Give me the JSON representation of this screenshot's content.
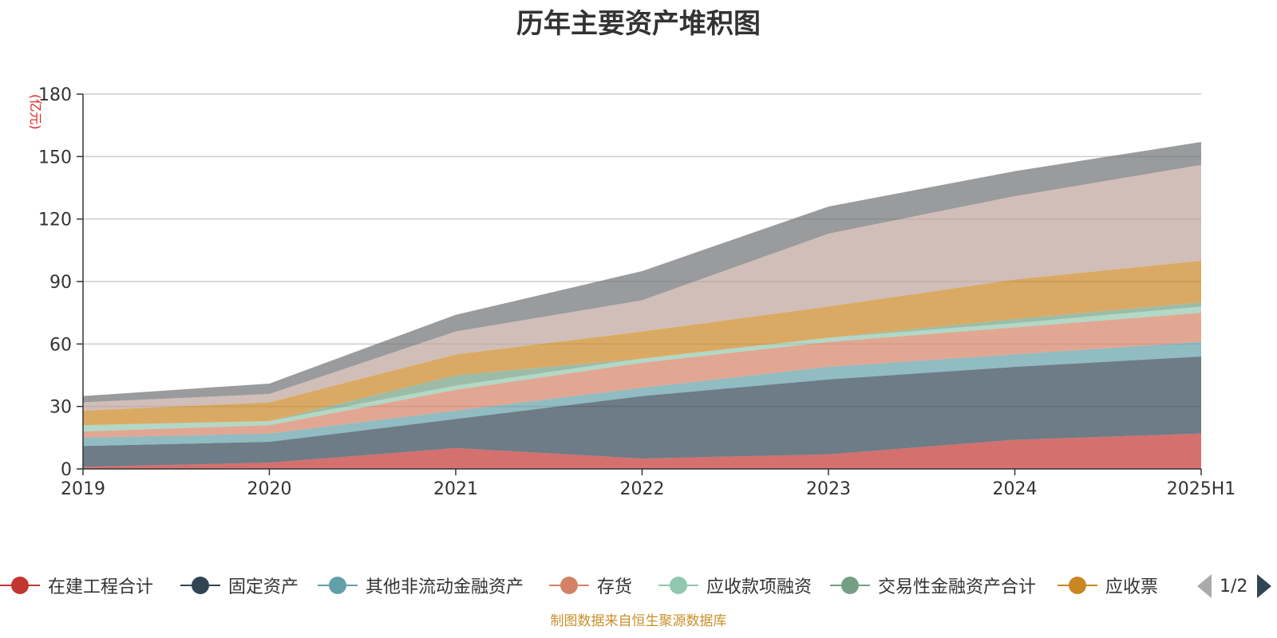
{
  "chart_data": {
    "type": "area",
    "stacked": true,
    "title": "历年主要资产堆积图",
    "unit": "(亿元)",
    "x": [
      "2019",
      "2020",
      "2021",
      "2022",
      "2023",
      "2024",
      "2025H1"
    ],
    "ylim": [
      0,
      180
    ],
    "yticks": [
      0,
      30,
      60,
      90,
      120,
      150,
      180
    ],
    "grid": true,
    "series": [
      {
        "name": "在建工程合计",
        "color": "#c23531",
        "values": [
          1,
          3,
          10,
          5,
          7,
          14,
          17
        ]
      },
      {
        "name": "固定资产",
        "color": "#2f4554",
        "values": [
          10,
          10,
          14,
          30,
          36,
          35,
          37
        ]
      },
      {
        "name": "其他非流动金融资产",
        "color": "#61a0a8",
        "values": [
          4,
          4,
          4,
          4,
          6,
          6,
          7
        ]
      },
      {
        "name": "存货",
        "color": "#d48265",
        "values": [
          3,
          4,
          10,
          12,
          12,
          13,
          14
        ]
      },
      {
        "name": "应收款项融资",
        "color": "#91c7ae",
        "values": [
          3,
          2,
          2,
          2,
          2,
          2,
          3
        ]
      },
      {
        "name": "交易性金融资产合计",
        "color": "#749f83",
        "values": [
          0,
          0,
          5,
          0,
          0,
          2,
          2
        ]
      },
      {
        "name": "应收票据",
        "color": "#ca8622",
        "values": [
          7,
          9,
          10,
          13,
          15,
          19,
          20
        ]
      },
      {
        "values": [
          4,
          4,
          11,
          15,
          35,
          40,
          46
        ],
        "color": "#bda29a"
      },
      {
        "values": [
          3,
          5,
          8,
          14,
          13,
          12,
          11
        ],
        "color": "#6e7074"
      }
    ]
  },
  "legend": {
    "items": [
      {
        "label": "在建工程合计",
        "color": "#c23531"
      },
      {
        "label": "固定资产",
        "color": "#2f4554"
      },
      {
        "label": "其他非流动金融资产",
        "color": "#61a0a8"
      },
      {
        "label": "存货",
        "color": "#d48265"
      },
      {
        "label": "应收款项融资",
        "color": "#91c7ae"
      },
      {
        "label": "交易性金融资产合计",
        "color": "#749f83"
      },
      {
        "label": "应收票",
        "color": "#ca8622"
      }
    ],
    "page": "1/2"
  },
  "source_note": "制图数据来自恒生聚源数据库"
}
